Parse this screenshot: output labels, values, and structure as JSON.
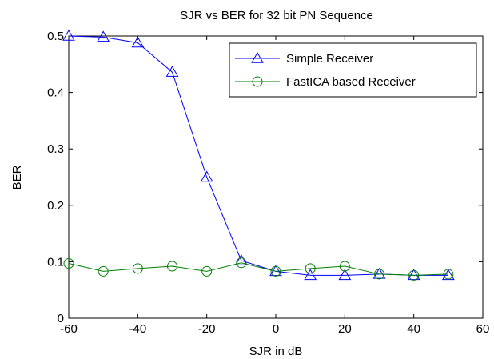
{
  "chart_data": {
    "type": "line",
    "title": "SJR vs BER for 32 bit PN Sequence",
    "xlabel": "SJR in dB",
    "ylabel": "BER",
    "xlim": [
      -60,
      60
    ],
    "ylim": [
      0,
      0.5
    ],
    "x_ticks": [
      "-60",
      "-40",
      "-20",
      "0",
      "20",
      "40",
      "60"
    ],
    "y_ticks": [
      "0",
      "0.1",
      "0.2",
      "0.3",
      "0.4",
      "0.5"
    ],
    "legend_position": "top-right",
    "grid": false,
    "x": [
      -60,
      -50,
      -40,
      -30,
      -20,
      -10,
      0,
      10,
      20,
      30,
      40,
      50
    ],
    "series": [
      {
        "name": "Simple Receiver",
        "color": "#0000ff",
        "marker": "triangle",
        "values": [
          0.5,
          0.498,
          0.488,
          0.436,
          0.25,
          0.102,
          0.083,
          0.076,
          0.076,
          0.078,
          0.076,
          0.076
        ]
      },
      {
        "name": "FastICA based Receiver",
        "color": "#008000",
        "marker": "circle",
        "values": [
          0.097,
          0.083,
          0.088,
          0.092,
          0.083,
          0.098,
          0.083,
          0.088,
          0.092,
          0.078,
          0.076,
          0.078
        ]
      }
    ]
  }
}
